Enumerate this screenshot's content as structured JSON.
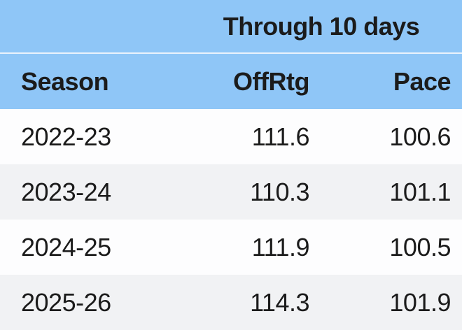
{
  "chart_data": {
    "type": "table",
    "title": "Through 10 days",
    "columns": [
      "Season",
      "OffRtg",
      "Pace"
    ],
    "rows": [
      [
        "2022-23",
        "111.6",
        "100.6"
      ],
      [
        "2023-24",
        "110.3",
        "101.1"
      ],
      [
        "2024-25",
        "111.9",
        "100.5"
      ],
      [
        "2025-26",
        "114.3",
        "101.9"
      ]
    ]
  },
  "colors": {
    "header_blue": "#8FC6F7",
    "header_divider": "#EAF2FC",
    "row_white": "#FDFDFE",
    "row_alt": "#F1F2F4",
    "text": "#1B1B1B"
  }
}
